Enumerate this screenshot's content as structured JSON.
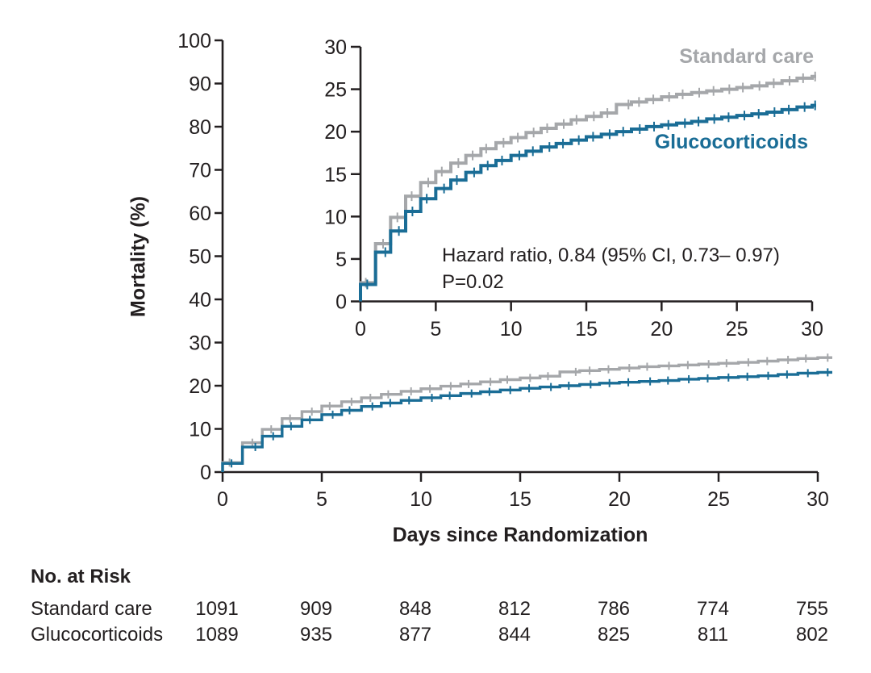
{
  "figure": {
    "y_axis_title": "Mortality (%)",
    "x_axis_title": "Days since Randomization",
    "annotation_line1": "Hazard ratio, 0.84 (95% CI, 0.73– 0.97)",
    "annotation_line2": "P=0.02",
    "colors": {
      "standard_care": "#a5a7aa",
      "glucocorticoids": "#1a6d96",
      "axis": "#231f20",
      "text": "#231f20"
    }
  },
  "chart_data": {
    "type": "line",
    "subtype": "kaplan-meier-step",
    "title": "",
    "xlabel": "Days since Randomization",
    "ylabel": "Mortality (%)",
    "days": [
      0,
      1,
      2,
      3,
      4,
      5,
      6,
      7,
      8,
      9,
      10,
      11,
      12,
      13,
      14,
      15,
      16,
      17,
      18,
      19,
      20,
      21,
      22,
      23,
      24,
      25,
      26,
      27,
      28,
      29,
      30
    ],
    "series": [
      {
        "name": "Standard care",
        "color": "#a5a7aa",
        "values": [
          2.2,
          6.8,
          9.9,
          12.4,
          14.0,
          15.3,
          16.3,
          17.2,
          18.0,
          18.7,
          19.3,
          19.9,
          20.4,
          20.9,
          21.4,
          21.8,
          22.2,
          23.2,
          23.5,
          23.8,
          24.1,
          24.4,
          24.6,
          24.8,
          25.0,
          25.2,
          25.4,
          25.7,
          26.0,
          26.3,
          26.5
        ],
        "censor_days": [
          0.35,
          1.5,
          2.45,
          3.4,
          4.5,
          5.4,
          6.5,
          7.45,
          8.35,
          9.5,
          10.45,
          11.5,
          12.4,
          13.5,
          14.35,
          15.5,
          16.4,
          17.8,
          18.5,
          19.45,
          20.5,
          21.4,
          22.5,
          23.45,
          24.5,
          25.4,
          26.5,
          27.45,
          28.5,
          29.4,
          30.5
        ]
      },
      {
        "name": "Glucocorticoids",
        "color": "#1a6d96",
        "values": [
          2.0,
          5.8,
          8.3,
          10.6,
          12.1,
          13.3,
          14.3,
          15.2,
          16.0,
          16.6,
          17.2,
          17.7,
          18.2,
          18.6,
          19.0,
          19.4,
          19.7,
          20.0,
          20.3,
          20.6,
          20.8,
          21.0,
          21.2,
          21.5,
          21.7,
          21.9,
          22.1,
          22.3,
          22.6,
          22.9,
          23.1
        ],
        "censor_days": [
          0.45,
          1.65,
          2.55,
          3.45,
          4.4,
          5.55,
          6.4,
          7.55,
          8.45,
          9.4,
          10.55,
          11.45,
          12.55,
          13.45,
          14.5,
          15.45,
          16.55,
          17.45,
          18.55,
          19.5,
          20.45,
          21.55,
          22.45,
          23.5,
          24.45,
          25.5,
          26.45,
          27.5,
          28.45,
          29.5,
          30.5
        ]
      }
    ],
    "main_axis": {
      "x_ticks": [
        0,
        5,
        10,
        15,
        20,
        25,
        30
      ],
      "y_ticks": [
        0,
        10,
        20,
        30,
        40,
        50,
        60,
        70,
        80,
        90,
        100
      ],
      "xlim": [
        0,
        30
      ],
      "ylim": [
        0,
        100
      ],
      "grid": false
    },
    "inset_axis": {
      "x_ticks": [
        0,
        5,
        10,
        15,
        20,
        25,
        30
      ],
      "y_ticks": [
        0,
        5,
        10,
        15,
        20,
        25,
        30
      ],
      "xlim": [
        0,
        30
      ],
      "ylim": [
        0,
        30
      ],
      "grid": false
    },
    "legend_position": "inline-labels"
  },
  "risk_table": {
    "title": "No. at Risk",
    "columns_days": [
      0,
      5,
      10,
      15,
      20,
      25,
      30
    ],
    "rows": [
      {
        "label": "Standard care",
        "values": [
          1091,
          909,
          848,
          812,
          786,
          774,
          755
        ]
      },
      {
        "label": "Glucocorticoids",
        "values": [
          1089,
          935,
          877,
          844,
          825,
          811,
          802
        ]
      }
    ]
  }
}
